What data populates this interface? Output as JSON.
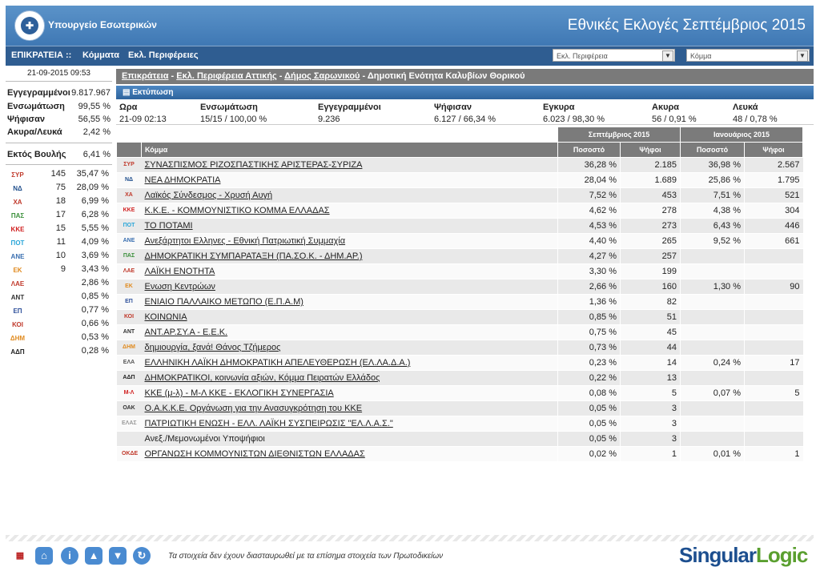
{
  "header": {
    "ministry": "Υπουργείο Εσωτερικών",
    "title": "Εθνικές Εκλογές Σεπτέμβριος 2015"
  },
  "nav": {
    "items": [
      "ΕΠΙΚΡΑΤΕΙΑ ::",
      "Κόμματα",
      "Εκλ. Περιφέρειες"
    ],
    "region_select": "Εκλ. Περιφέρεια",
    "party_select": "Κόμμα"
  },
  "sidebar": {
    "timestamp": "21-09-2015 09:53",
    "stats": [
      {
        "label": "Εγγεγραμμένοι",
        "value": "9.817.967"
      },
      {
        "label": "Ενσωμάτωση",
        "value": "99,55 %"
      },
      {
        "label": "Ψήφισαν",
        "value": "56,55 %"
      },
      {
        "label": "Ακυρα/Λευκά",
        "value": "2,42 %"
      }
    ],
    "outside": {
      "label": "Εκτός Βουλής",
      "value": "6,41 %"
    },
    "seats": [
      {
        "icon": "syriza-icon",
        "seats": "145",
        "pct": "35,47 %",
        "color": "#c0392b",
        "abbr": "ΣΥΡ"
      },
      {
        "icon": "nd-icon",
        "seats": "75",
        "pct": "28,09 %",
        "color": "#1f4e8c",
        "abbr": "ΝΔ"
      },
      {
        "icon": "xa-icon",
        "seats": "18",
        "pct": "6,99 %",
        "color": "#c0392b",
        "abbr": "ΧΑ"
      },
      {
        "icon": "dimsy-icon",
        "seats": "17",
        "pct": "6,28 %",
        "color": "#3a8f3a",
        "abbr": "ΠΑΣ"
      },
      {
        "icon": "kke-icon",
        "seats": "15",
        "pct": "5,55 %",
        "color": "#d01f1f",
        "abbr": "ΚΚΕ"
      },
      {
        "icon": "potami-icon",
        "seats": "11",
        "pct": "4,09 %",
        "color": "#28a5d8",
        "abbr": "ΠΟΤ"
      },
      {
        "icon": "anel-icon",
        "seats": "10",
        "pct": "3,69 %",
        "color": "#3a6fb0",
        "abbr": "ΑΝΕ"
      },
      {
        "icon": "ek-icon",
        "seats": "9",
        "pct": "3,43 %",
        "color": "#e08a1e",
        "abbr": "ΕΚ"
      },
      {
        "icon": "lae-icon",
        "seats": "",
        "pct": "2,86 %",
        "color": "#c0392b",
        "abbr": "ΛΑΕ"
      },
      {
        "icon": "antarsya-icon",
        "seats": "",
        "pct": "0,85 %",
        "color": "#333333",
        "abbr": "ΑΝΤ"
      },
      {
        "icon": "epam-icon",
        "seats": "",
        "pct": "0,77 %",
        "color": "#2d4f9a",
        "abbr": "ΕΠ"
      },
      {
        "icon": "koinonia-icon",
        "seats": "",
        "pct": "0,66 %",
        "color": "#c0392b",
        "abbr": "ΚΟΙ"
      },
      {
        "icon": "dimiourgia-icon",
        "seats": "",
        "pct": "0,53 %",
        "color": "#e08a1e",
        "abbr": "ΔΗΜ"
      },
      {
        "icon": "adp-icon",
        "seats": "",
        "pct": "0,28 %",
        "color": "#222222",
        "abbr": "ΑΔΠ"
      }
    ]
  },
  "breadcrumb": {
    "links": [
      "Επικράτεια",
      "Εκλ. Περιφέρεια Αττικής",
      "Δήμος Σαρωνικού"
    ],
    "current": "Δημοτική Ενότητα Καλυβίων Θορικού",
    "sep": " - "
  },
  "print_label": "Εκτύπωση",
  "summary": {
    "headers": [
      "Ωρα",
      "Ενσωμάτωση",
      "Εγγεγραμμένοι",
      "Ψήφισαν",
      "Εγκυρα",
      "Ακυρα",
      "Λευκά"
    ],
    "values": [
      "21-09 02:13",
      "15/15 / 100,00 %",
      "9.236",
      "6.127 / 66,34 %",
      "6.023 / 98,30 %",
      "56 / 0,91 %",
      "48 / 0,78 %"
    ]
  },
  "table": {
    "group_sep": "Σεπτέμβριος 2015",
    "group_jan": "Ιανουάριος 2015",
    "col_party": "Κόμμα",
    "col_pct": "Ποσοστό",
    "col_votes": "Ψήφοι",
    "rows": [
      {
        "abbr": "ΣΥΡ",
        "color": "#c0392b",
        "name": "ΣΥΝΑΣΠΙΣΜΟΣ ΡΙΖΟΣΠΑΣΤΙΚΗΣ ΑΡΙΣΤΕΡΑΣ-ΣΥΡΙΖΑ",
        "pct": "36,28 %",
        "votes": "2.185",
        "jpct": "36,98 %",
        "jvotes": "2.567"
      },
      {
        "abbr": "ΝΔ",
        "color": "#1f4e8c",
        "name": "ΝΕΑ ΔΗΜΟΚΡΑΤΙΑ",
        "pct": "28,04 %",
        "votes": "1.689",
        "jpct": "25,86 %",
        "jvotes": "1.795"
      },
      {
        "abbr": "ΧΑ",
        "color": "#c0392b",
        "name": "Λαϊκός Σύνδεσμος - Χρυσή Αυγή",
        "pct": "7,52 %",
        "votes": "453",
        "jpct": "7,51 %",
        "jvotes": "521"
      },
      {
        "abbr": "ΚΚΕ",
        "color": "#d01f1f",
        "name": "Κ.Κ.Ε. - ΚΟΜΜΟΥΝΙΣΤΙΚΟ ΚΟΜΜΑ ΕΛΛΑΔΑΣ",
        "pct": "4,62 %",
        "votes": "278",
        "jpct": "4,38 %",
        "jvotes": "304"
      },
      {
        "abbr": "ΠΟΤ",
        "color": "#28a5d8",
        "name": "ΤΟ ΠΟΤΑΜΙ",
        "pct": "4,53 %",
        "votes": "273",
        "jpct": "6,43 %",
        "jvotes": "446"
      },
      {
        "abbr": "ΑΝΕ",
        "color": "#3a6fb0",
        "name": "Ανεξάρτητοι Ελληνες - Εθνική Πατριωτική Συμμαχία",
        "pct": "4,40 %",
        "votes": "265",
        "jpct": "9,52 %",
        "jvotes": "661"
      },
      {
        "abbr": "ΠΑΣ",
        "color": "#3a8f3a",
        "name": "ΔΗΜΟΚΡΑΤΙΚΗ ΣΥΜΠΑΡΑΤΑΞΗ (ΠΑ.ΣΟ.Κ. - ΔΗΜ.ΑΡ.)",
        "pct": "4,27 %",
        "votes": "257",
        "jpct": "",
        "jvotes": ""
      },
      {
        "abbr": "ΛΑΕ",
        "color": "#c0392b",
        "name": "ΛΑΪΚΗ ΕΝΟΤΗΤΑ",
        "pct": "3,30 %",
        "votes": "199",
        "jpct": "",
        "jvotes": ""
      },
      {
        "abbr": "ΕΚ",
        "color": "#e08a1e",
        "name": "Ενωση Κεντρώων",
        "pct": "2,66 %",
        "votes": "160",
        "jpct": "1,30 %",
        "jvotes": "90"
      },
      {
        "abbr": "ΕΠ",
        "color": "#2d4f9a",
        "name": "ΕΝΙΑΙΟ ΠΑΛΛΑΙΚΟ ΜΕΤΩΠΟ (Ε.Π.Α.Μ)",
        "pct": "1,36 %",
        "votes": "82",
        "jpct": "",
        "jvotes": ""
      },
      {
        "abbr": "ΚΟΙ",
        "color": "#c0392b",
        "name": "ΚΟΙΝΩΝΙΑ",
        "pct": "0,85 %",
        "votes": "51",
        "jpct": "",
        "jvotes": ""
      },
      {
        "abbr": "ΑΝΤ",
        "color": "#333333",
        "name": "ΑΝΤ.ΑΡ.ΣΥ.Α - Ε.Ε.Κ.",
        "pct": "0,75 %",
        "votes": "45",
        "jpct": "",
        "jvotes": ""
      },
      {
        "abbr": "ΔΗΜ",
        "color": "#e08a1e",
        "name": "δημιουργία, ξανά! Θάνος Τζήμερος",
        "pct": "0,73 %",
        "votes": "44",
        "jpct": "",
        "jvotes": ""
      },
      {
        "abbr": "ΕΛΑ",
        "color": "#555555",
        "name": "ΕΛΛΗΝΙΚΗ ΛΑΪΚΗ ΔΗΜΟΚΡΑΤΙΚΗ ΑΠΕΛΕΥΘΕΡΩΣΗ (ΕΛ.ΛΑ.Δ.Α.)",
        "pct": "0,23 %",
        "votes": "14",
        "jpct": "0,24 %",
        "jvotes": "17"
      },
      {
        "abbr": "ΑΔΠ",
        "color": "#222222",
        "name": "ΔΗΜΟΚΡΑΤΙΚΟΙ, κοινωνία αξιών, Κόμμα Πειρατών Ελλάδος",
        "pct": "0,22 %",
        "votes": "13",
        "jpct": "",
        "jvotes": ""
      },
      {
        "abbr": "Μ-Λ",
        "color": "#d01f1f",
        "name": "ΚΚΕ (μ-λ) - Μ-Λ ΚΚΕ - ΕΚΛΟΓΙΚΗ ΣΥΝΕΡΓΑΣΙΑ",
        "pct": "0,08 %",
        "votes": "5",
        "jpct": "0,07 %",
        "jvotes": "5"
      },
      {
        "abbr": "ΟΑΚ",
        "color": "#333333",
        "name": "Ο.Α.Κ.Κ.Ε. Οργάνωση για την Ανασυγκρότηση του ΚΚΕ",
        "pct": "0,05 %",
        "votes": "3",
        "jpct": "",
        "jvotes": ""
      },
      {
        "abbr": "ΕΛΑΣ",
        "color": "#999999",
        "name": "ΠΑΤΡΙΩΤΙΚΗ ΕΝΩΣΗ - ΕΛΛ. ΛΑΪΚΗ ΣΥΣΠΕΙΡΩΣΙΣ \"ΕΛ.Λ.Α.Σ.\"",
        "pct": "0,05 %",
        "votes": "3",
        "jpct": "",
        "jvotes": ""
      },
      {
        "abbr": "",
        "color": "#ffffff",
        "name": "Ανεξ./Μεμονωμένοι Υποψήφιοι",
        "pct": "0,05 %",
        "votes": "3",
        "jpct": "",
        "jvotes": ""
      },
      {
        "abbr": "ΟΚΔΕ",
        "color": "#c0392b",
        "name": "ΟΡΓΑΝΩΣΗ ΚΟΜΜΟΥΝΙΣΤΩΝ ΔΙΕΘΝΙΣΤΩΝ ΕΛΛΑΔΑΣ",
        "pct": "0,02 %",
        "votes": "1",
        "jpct": "0,01 %",
        "jvotes": "1"
      }
    ]
  },
  "footer": {
    "disclaimer": "Τα στοιχεία δεν έχουν διασταυρωθεί με τα επίσημα στοιχεία των Πρωτοδικείων",
    "brand_part1": "Singular",
    "brand_part2": "Logic",
    "icons": [
      "uk-flag-icon",
      "home-icon",
      "info-icon",
      "arrow-up-icon",
      "arrow-down-icon",
      "refresh-icon"
    ]
  }
}
